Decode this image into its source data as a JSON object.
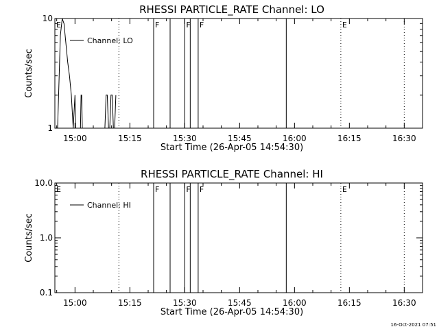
{
  "chart_data": [
    {
      "type": "line",
      "title": "RHESSI PARTICLE_RATE Channel: LO",
      "xlabel": "Start Time (26-Apr-05 14:54:30)",
      "ylabel": "Counts/sec",
      "x_ticks": [
        "15:00",
        "15:15",
        "15:30",
        "15:45",
        "16:00",
        "16:15",
        "16:30"
      ],
      "y_scale": "log",
      "y_ticks": [
        "1",
        "10"
      ],
      "ylim": [
        1,
        10
      ],
      "legend": {
        "position": "top-left",
        "label": "Channel: LO"
      },
      "series": [
        {
          "name": "Channel: LO",
          "x": [
            "14:54:30",
            "14:55:15",
            "14:56:00",
            "14:56:30",
            "14:57:00",
            "14:57:30",
            "14:58:00",
            "14:58:30",
            "14:59:00",
            "14:59:30",
            "15:00:00",
            "15:00:10",
            "15:00:30",
            "15:00:50",
            "15:01:15",
            "15:01:30",
            "15:01:40",
            "15:01:50",
            "15:02:00",
            "15:02:30",
            "15:02:50",
            "15:08:10",
            "15:08:30",
            "15:08:50",
            "15:09:10",
            "15:09:30",
            "15:09:50",
            "15:10:10",
            "15:10:30",
            "15:10:50",
            "15:11:10"
          ],
          "y": [
            1,
            1,
            7,
            10,
            9,
            6,
            4,
            3,
            2,
            1,
            2,
            1,
            1,
            1,
            1,
            1,
            2,
            2,
            1,
            1,
            1,
            1,
            2,
            2,
            1,
            1,
            2,
            2,
            1,
            1,
            2
          ]
        }
      ],
      "flags": [
        {
          "label": "E",
          "time": "14:54:30",
          "style": "dotted"
        },
        {
          "label": "",
          "time": "15:12:00",
          "style": "dotted"
        },
        {
          "label": "F",
          "time": "15:21:30",
          "style": "solid"
        },
        {
          "label": "",
          "time": "15:26:00",
          "style": "solid"
        },
        {
          "label": "F",
          "time": "15:30:00",
          "style": "solid"
        },
        {
          "label": "",
          "time": "15:31:30",
          "style": "solid"
        },
        {
          "label": "F",
          "time": "15:33:40",
          "style": "solid"
        },
        {
          "label": "",
          "time": "15:57:45",
          "style": "solid"
        },
        {
          "label": "E",
          "time": "16:12:40",
          "style": "dotted"
        },
        {
          "label": "",
          "time": "16:30:00",
          "style": "dotted"
        }
      ]
    },
    {
      "type": "line",
      "title": "RHESSI PARTICLE_RATE Channel: HI",
      "xlabel": "Start Time (26-Apr-05 14:54:30)",
      "ylabel": "Counts/sec",
      "x_ticks": [
        "15:00",
        "15:15",
        "15:30",
        "15:45",
        "16:00",
        "16:15",
        "16:30"
      ],
      "y_scale": "log",
      "y_ticks": [
        "0.1",
        "1.0",
        "10.0"
      ],
      "ylim": [
        0.1,
        10
      ],
      "legend": {
        "position": "top-left",
        "label": "Channel: HI"
      },
      "series": [
        {
          "name": "Channel: HI",
          "x": [],
          "y": []
        }
      ],
      "flags": [
        {
          "label": "E",
          "time": "14:54:30",
          "style": "dotted"
        },
        {
          "label": "",
          "time": "15:12:00",
          "style": "dotted"
        },
        {
          "label": "F",
          "time": "15:21:30",
          "style": "solid"
        },
        {
          "label": "",
          "time": "15:26:00",
          "style": "solid"
        },
        {
          "label": "F",
          "time": "15:30:00",
          "style": "solid"
        },
        {
          "label": "",
          "time": "15:31:30",
          "style": "solid"
        },
        {
          "label": "F",
          "time": "15:33:40",
          "style": "solid"
        },
        {
          "label": "",
          "time": "15:57:45",
          "style": "solid"
        },
        {
          "label": "E",
          "time": "16:12:40",
          "style": "dotted"
        },
        {
          "label": "",
          "time": "16:30:00",
          "style": "dotted"
        }
      ]
    }
  ],
  "footer": {
    "timestamp": "16-Oct-2021 07:51"
  }
}
